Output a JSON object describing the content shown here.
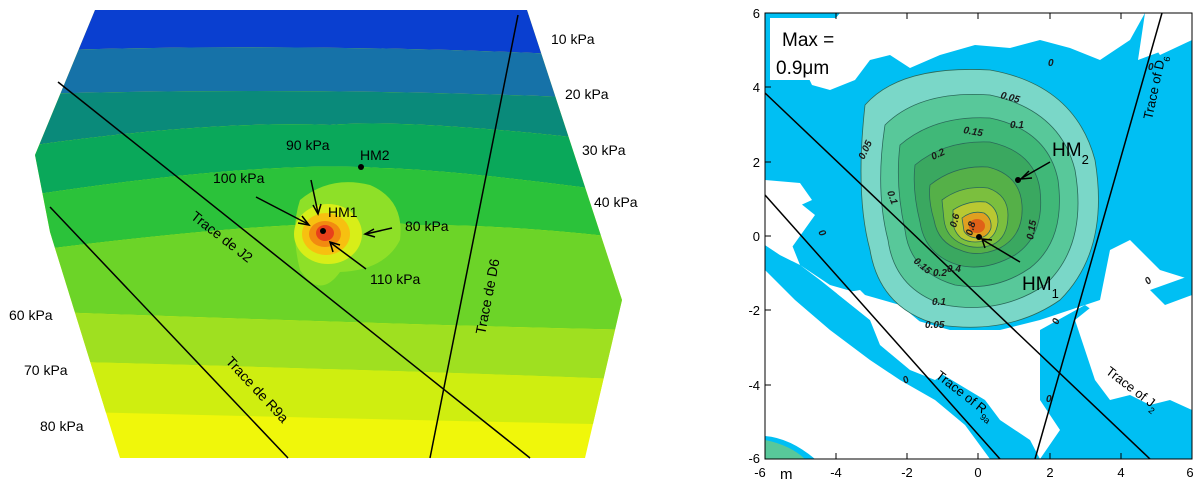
{
  "left_panel": {
    "pressure_labels_right": [
      "10 kPa",
      "20 kPa",
      "30 kPa",
      "40 kPa"
    ],
    "pressure_labels_left": [
      "60 kPa",
      "70 kPa",
      "80 kPa"
    ],
    "inner_labels": {
      "p90": "90 kPa",
      "p100": "100 kPa",
      "p80": "80 kPa",
      "p110": "110 kPa"
    },
    "points": {
      "hm1": "HM1",
      "hm2": "HM2"
    },
    "traces": {
      "j2": "Trace de J2",
      "d6": "Trace de D6",
      "r9a": "Trace de R9a"
    },
    "band_colors": [
      "#0a3fd0",
      "#1672a8",
      "#0a8a7a",
      "#0aa85a",
      "#2bc23a",
      "#6cd428",
      "#9fe020",
      "#cfee10",
      "#f0f70a"
    ]
  },
  "right_panel": {
    "max_label_line1": "Max =",
    "max_label_line2": "0.9μm",
    "unit_label": "m",
    "y_ticks": [
      "6",
      "4",
      "2",
      "0",
      "-2",
      "-4",
      "-6"
    ],
    "x_ticks": [
      "-6",
      "-4",
      "-2",
      "0",
      "2",
      "4",
      "6"
    ],
    "contour_labels": [
      "0",
      "0",
      "0.05",
      "0.1",
      "0.15",
      "0.05",
      "0.1",
      "0.2",
      "0.6",
      "0.8",
      "0.15",
      "0.15",
      "0.2",
      "0.4",
      "0.1",
      "0.05",
      "0",
      "0",
      "0",
      "0",
      "0"
    ],
    "points": {
      "hm1": "HM",
      "hm1_sub": "1",
      "hm2": "HM",
      "hm2_sub": "2"
    },
    "traces": {
      "d": "Trace of D",
      "d_sub": "6",
      "r": "Trace of R",
      "r_sub": "9a",
      "j": "Trace of J",
      "j_sub": "2"
    },
    "fill_colors": [
      "#00bff3",
      "#7ad7c8",
      "#58c89a",
      "#40b878",
      "#3aa860",
      "#7bbf3e",
      "#b9c832",
      "#e0a020",
      "#e06018"
    ]
  }
}
